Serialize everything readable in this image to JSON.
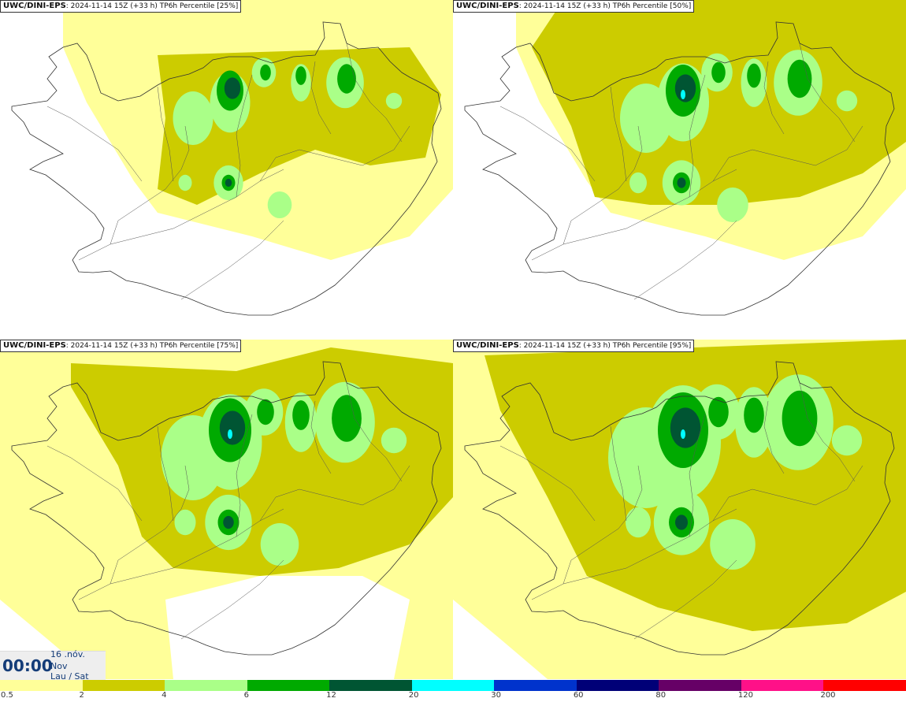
{
  "panels": [
    {
      "model": "UWC/DINI-EPS",
      "run": "2024-11-14 15Z (+33 h)",
      "field": "TP6h Percentile [25%]",
      "level": 1
    },
    {
      "model": "UWC/DINI-EPS",
      "run": "2024-11-14 15Z (+33 h)",
      "field": "TP6h Percentile [50%]",
      "level": 2
    },
    {
      "model": "UWC/DINI-EPS",
      "run": "2024-11-14 15Z (+33 h)",
      "field": "TP6h Percentile [75%]",
      "level": 3
    },
    {
      "model": "UWC/DINI-EPS",
      "run": "2024-11-14 15Z (+33 h)",
      "field": "TP6h Percentile [95%]",
      "level": 4
    }
  ],
  "timestamp": {
    "time": "00:00",
    "line1": "16 .nóv.",
    "line2": "Nov",
    "line3": "Lau / Sat"
  },
  "legend": {
    "ticks": [
      "0.5",
      "2",
      "4",
      "6",
      "12",
      "20",
      "30",
      "60",
      "80",
      "120",
      "200"
    ],
    "colors": [
      "#ffff99",
      "#cccc00",
      "#aaff88",
      "#00aa00",
      "#005533",
      "#00ffff",
      "#0033cc",
      "#000077",
      "#660066",
      "#ff1188",
      "#ff0000"
    ]
  }
}
